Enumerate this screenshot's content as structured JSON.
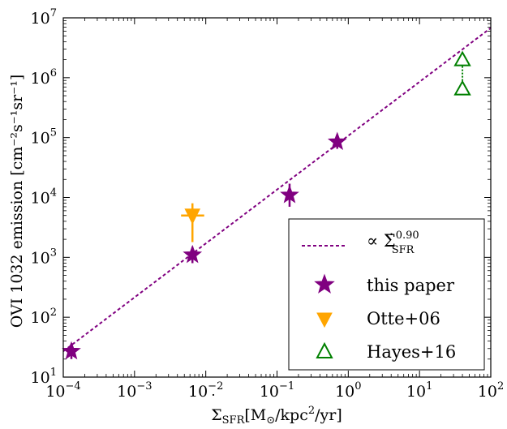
{
  "chart_data": {
    "type": "scatter",
    "title": "",
    "xlabel": {
      "main": "Σ",
      "sub": "SFR",
      "rest": "[M",
      "sun_sub": "⊙",
      "tail": "/kpc",
      "sup2": "2",
      "end": "/yr]"
    },
    "ylabel": "OVI 1032 emission [cm⁻²s⁻¹sr⁻¹]",
    "xscale": "log",
    "yscale": "log",
    "xlim": [
      0.0001,
      100
    ],
    "ylim": [
      10,
      10000000
    ],
    "x_ticks": [
      {
        "value": 0.0001,
        "base": "10",
        "exp": "−4"
      },
      {
        "value": 0.001,
        "base": "10",
        "exp": "−3"
      },
      {
        "value": 0.01,
        "base": "10",
        "exp": "−2"
      },
      {
        "value": 0.1,
        "base": "10",
        "exp": "−1"
      },
      {
        "value": 1,
        "base": "10",
        "exp": "0"
      },
      {
        "value": 10,
        "base": "10",
        "exp": "1"
      },
      {
        "value": 100,
        "base": "10",
        "exp": "2"
      }
    ],
    "y_ticks": [
      {
        "value": 10,
        "base": "10",
        "exp": "1"
      },
      {
        "value": 100,
        "base": "10",
        "exp": "2"
      },
      {
        "value": 1000,
        "base": "10",
        "exp": "3"
      },
      {
        "value": 10000,
        "base": "10",
        "exp": "4"
      },
      {
        "value": 100000,
        "base": "10",
        "exp": "5"
      },
      {
        "value": 1000000,
        "base": "10",
        "exp": "6"
      },
      {
        "value": 10000000,
        "base": "10",
        "exp": "7"
      }
    ],
    "fit_line": {
      "name": "∝ Σ̇SFR^0.90",
      "label_main": "∝ Σ̇",
      "label_sup": "0.90",
      "label_sub": "SFR",
      "slope": 0.9,
      "x_start": 0.0001,
      "y_at_x_start": 27,
      "x_end": 100,
      "color": "#800080"
    },
    "series": [
      {
        "name": "this paper",
        "marker": "star",
        "color": "#800080",
        "points": [
          {
            "x": 0.00013,
            "y": 27,
            "yerr_low": 20,
            "yerr_high": 36
          },
          {
            "x": 0.0065,
            "y": 1100,
            "yerr_low": 800,
            "yerr_high": 1500
          },
          {
            "x": 0.15,
            "y": 11000,
            "yerr_low": 7000,
            "yerr_high": 17000
          },
          {
            "x": 0.7,
            "y": 85000,
            "yerr_low": 65000,
            "yerr_high": 100000
          }
        ]
      },
      {
        "name": "Otte+06",
        "marker": "triangle-down",
        "color": "#FFA500",
        "points": [
          {
            "x": 0.0065,
            "y": 5000,
            "xerr_low": 0.0045,
            "xerr_high": 0.0095,
            "yerr_low": 1800,
            "yerr_high": 8000
          }
        ]
      },
      {
        "name": "Hayes+16",
        "marker": "triangle-up-open",
        "color": "#008000",
        "points": [
          {
            "x": 40,
            "y": 2000000
          },
          {
            "x": 40,
            "y": 650000
          }
        ],
        "connector": "dotted"
      }
    ],
    "legend": {
      "placement": "bottom-right",
      "entries": [
        {
          "label": "∝ Σ̇SFR^0.90",
          "marker": "dashed-line"
        },
        {
          "label": "this paper",
          "marker": "star"
        },
        {
          "label": "Otte+06",
          "marker": "triangle-down"
        },
        {
          "label": "Hayes+16",
          "marker": "triangle-up-open"
        }
      ]
    },
    "grid": false
  }
}
